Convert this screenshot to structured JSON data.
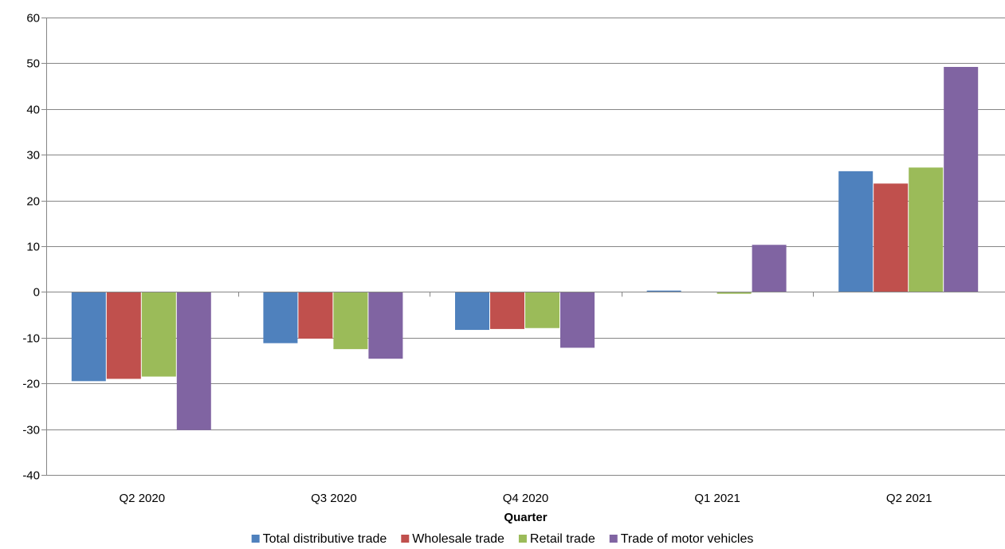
{
  "chart_data": {
    "type": "bar",
    "title": "",
    "xlabel": "Quarter",
    "ylabel": "",
    "ylim": [
      -40,
      60
    ],
    "yticks": [
      60,
      50,
      40,
      30,
      20,
      10,
      0,
      -10,
      -20,
      -30,
      -40
    ],
    "grid": true,
    "legend_position": "bottom",
    "categories": [
      "Q2 2020",
      "Q3 2020",
      "Q4 2020",
      "Q1 2021",
      "Q2 2021"
    ],
    "series": [
      {
        "name": "Total distributive trade",
        "color": "#4F81BD",
        "values": [
          -19.5,
          -11.2,
          -8.3,
          0.3,
          26.4
        ]
      },
      {
        "name": "Wholesale trade",
        "color": "#C0504D",
        "values": [
          -19.0,
          -10.2,
          -8.1,
          0.0,
          23.7
        ]
      },
      {
        "name": "Retail trade",
        "color": "#9BBB59",
        "values": [
          -18.5,
          -12.5,
          -7.9,
          -0.4,
          27.2
        ]
      },
      {
        "name": "Trade of motor vehicles",
        "color": "#8064A2",
        "values": [
          -30.2,
          -14.6,
          -12.2,
          10.3,
          49.2
        ]
      }
    ]
  }
}
